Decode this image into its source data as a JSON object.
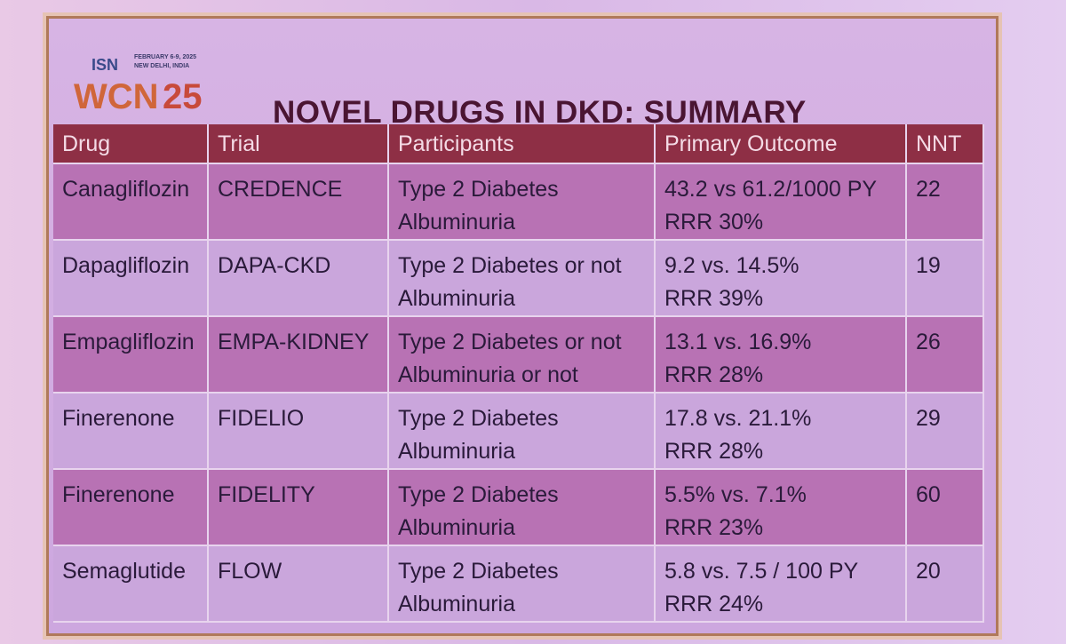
{
  "header": {
    "logo_org": "ISN",
    "logo_event": "WCN",
    "logo_year": "25",
    "logo_date": "FEBRUARY 6-9, 2025",
    "logo_place": "NEW DELHI, INDIA",
    "title": "NOVEL DRUGS IN DKD: SUMMARY"
  },
  "table": {
    "columns": [
      "Drug",
      "Trial",
      "Participants",
      "Primary Outcome",
      "NNT"
    ],
    "rows": [
      [
        "Canagliflozin",
        "CREDENCE",
        [
          "Type 2 Diabetes",
          "Albuminuria"
        ],
        [
          "43.2 vs 61.2/1000 PY",
          "RRR 30%"
        ],
        22
      ],
      [
        "Dapagliflozin",
        "DAPA-CKD",
        [
          "Type 2 Diabetes or not",
          "Albuminuria"
        ],
        [
          "9.2 vs. 14.5%",
          "RRR 39%"
        ],
        19
      ],
      [
        "Empagliflozin",
        "EMPA-KIDNEY",
        [
          "Type 2 Diabetes or not",
          "Albuminuria or not"
        ],
        [
          "13.1 vs. 16.9%",
          "RRR 28%"
        ],
        26
      ],
      [
        "Finerenone",
        "FIDELIO",
        [
          "Type 2 Diabetes",
          "Albuminuria"
        ],
        [
          "17.8 vs. 21.1%",
          "RRR 28%"
        ],
        29
      ],
      [
        "Finerenone",
        "FIDELITY",
        [
          "Type 2 Diabetes",
          "Albuminuria"
        ],
        [
          "5.5% vs. 7.1%",
          "RRR 23%"
        ],
        60
      ],
      [
        "Semaglutide",
        "FLOW",
        [
          "Type 2 Diabetes",
          "Albuminuria"
        ],
        [
          "5.8 vs. 7.5 / 100 PY",
          "RRR 24%"
        ],
        20
      ]
    ]
  }
}
